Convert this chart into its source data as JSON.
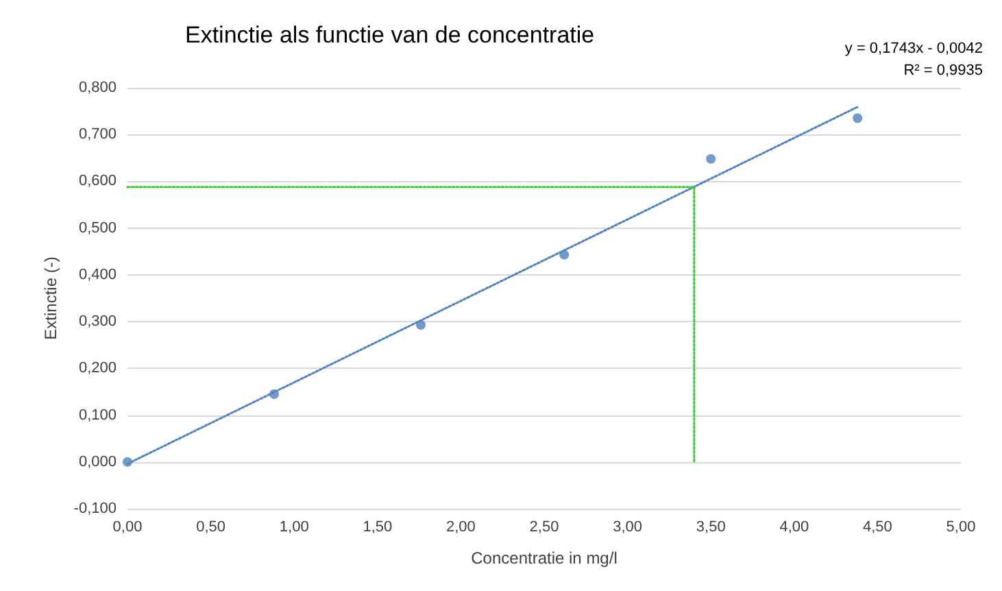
{
  "chart_data": {
    "type": "scatter",
    "title": "Extinctie als functie van de concentratie",
    "xlabel": "Concentratie in mg/l",
    "ylabel": "Extinctie (-)",
    "annotations": [
      "y = 0,1743x - 0,0042",
      "R² = 0,9935"
    ],
    "x": [
      0,
      0.88,
      1.76,
      2.62,
      3.5,
      4.38
    ],
    "series": [
      {
        "color": "#4f81bd",
        "marker": "circle",
        "values": [
          0,
          0.145,
          0.293,
          0.443,
          0.648,
          0.735
        ]
      },
      {
        "type": "line",
        "color": "#4f81bd",
        "line_style": "dotted",
        "marker": "none",
        "x": [
          0,
          4.38
        ],
        "values": [
          -0.004,
          0.759
        ]
      },
      {
        "type": "line",
        "color": "#33cc33",
        "line_style": "dotted",
        "marker": "none",
        "x": [
          0,
          3.4,
          3.4
        ],
        "values": [
          0.588,
          0.588,
          0
        ]
      }
    ],
    "xlim": [
      0,
      5
    ],
    "xticks": [
      {
        "value": 0,
        "label": "0,00"
      },
      {
        "value": 0.5,
        "label": "0,50"
      },
      {
        "value": 1,
        "label": "1,00"
      },
      {
        "value": 1.5,
        "label": "1,50"
      },
      {
        "value": 2,
        "label": "2,00"
      },
      {
        "value": 2.5,
        "label": "2,50"
      },
      {
        "value": 3,
        "label": "3,00"
      },
      {
        "value": 3.5,
        "label": "3,50"
      },
      {
        "value": 4,
        "label": "4,00"
      },
      {
        "value": 4.5,
        "label": "4,50"
      },
      {
        "value": 5,
        "label": "5,00"
      }
    ],
    "ylim": [
      -0.1,
      0.8
    ],
    "yticks": [
      {
        "value": -0.1,
        "label": "-0,100"
      },
      {
        "value": 0,
        "label": "0,000"
      },
      {
        "value": 0.1,
        "label": "0,100"
      },
      {
        "value": 0.2,
        "label": "0,200"
      },
      {
        "value": 0.3,
        "label": "0,300"
      },
      {
        "value": 0.4,
        "label": "0,400"
      },
      {
        "value": 0.5,
        "label": "0,500"
      },
      {
        "value": 0.6,
        "label": "0,600"
      },
      {
        "value": 0.7,
        "label": "0,700"
      },
      {
        "value": 0.8,
        "label": "0,800"
      }
    ],
    "grid": "y"
  }
}
